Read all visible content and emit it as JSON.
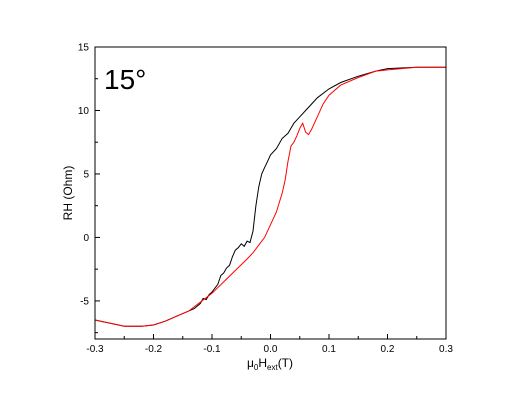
{
  "chart_data": {
    "type": "line",
    "title": "",
    "annotation": "15°",
    "xlabel": {
      "main": "μ",
      "sub1": "0",
      "mid": "H",
      "sub2": "ext",
      "end": "(T)"
    },
    "ylabel": "RH (Ohm)",
    "xlim": [
      -0.3,
      0.3
    ],
    "ylim": [
      -8,
      15
    ],
    "xticks": [
      -0.3,
      -0.2,
      -0.1,
      0.0,
      0.1,
      0.2,
      0.3
    ],
    "xtick_labels": [
      "-0.3",
      "-0.2",
      "-0.1",
      "0.0",
      "0.1",
      "0.2",
      "0.3"
    ],
    "yticks": [
      -5,
      0,
      5,
      10,
      15
    ],
    "ytick_labels": [
      "-5",
      "0",
      "5",
      "10",
      "15"
    ],
    "grid": false,
    "legend": "none",
    "series": [
      {
        "color": "#000000",
        "x": [
          -0.3,
          -0.25,
          -0.22,
          -0.2,
          -0.18,
          -0.16,
          -0.14,
          -0.13,
          -0.12,
          -0.115,
          -0.11,
          -0.105,
          -0.1,
          -0.095,
          -0.09,
          -0.085,
          -0.08,
          -0.075,
          -0.07,
          -0.065,
          -0.06,
          -0.055,
          -0.05,
          -0.045,
          -0.04,
          -0.035,
          -0.03,
          -0.025,
          -0.02,
          -0.015,
          -0.01,
          -0.005,
          0.0,
          0.01,
          0.02,
          0.03,
          0.04,
          0.05,
          0.06,
          0.07,
          0.08,
          0.1,
          0.12,
          0.15,
          0.18,
          0.2,
          0.25,
          0.3
        ],
        "y": [
          -6.5,
          -7.0,
          -7.0,
          -6.9,
          -6.6,
          -6.2,
          -5.8,
          -5.6,
          -5.2,
          -4.8,
          -4.9,
          -4.5,
          -4.3,
          -4.0,
          -3.7,
          -3.0,
          -2.8,
          -2.4,
          -2.2,
          -1.5,
          -1.0,
          -0.8,
          -0.5,
          -0.7,
          -0.3,
          -0.4,
          0.5,
          2.5,
          4.0,
          5.0,
          5.5,
          6.0,
          6.5,
          7.0,
          7.8,
          8.2,
          9.0,
          9.5,
          10.0,
          10.5,
          11.0,
          11.7,
          12.2,
          12.7,
          13.1,
          13.3,
          13.4,
          13.4
        ]
      },
      {
        "color": "#ff0000",
        "x": [
          -0.3,
          -0.25,
          -0.22,
          -0.2,
          -0.18,
          -0.16,
          -0.14,
          -0.12,
          -0.1,
          -0.08,
          -0.06,
          -0.04,
          -0.03,
          -0.02,
          -0.01,
          0.0,
          0.01,
          0.02,
          0.025,
          0.03,
          0.035,
          0.04,
          0.045,
          0.05,
          0.055,
          0.06,
          0.065,
          0.07,
          0.08,
          0.09,
          0.1,
          0.12,
          0.15,
          0.18,
          0.2,
          0.25,
          0.3
        ],
        "y": [
          -6.5,
          -7.0,
          -7.0,
          -6.9,
          -6.6,
          -6.2,
          -5.8,
          -5.1,
          -4.4,
          -3.5,
          -2.6,
          -1.7,
          -1.2,
          -0.6,
          0.0,
          1.0,
          2.0,
          3.5,
          4.5,
          6.0,
          7.2,
          7.5,
          8.0,
          8.6,
          9.0,
          8.3,
          8.1,
          8.5,
          9.5,
          10.5,
          11.2,
          12.0,
          12.6,
          13.1,
          13.2,
          13.4,
          13.4
        ]
      }
    ]
  }
}
